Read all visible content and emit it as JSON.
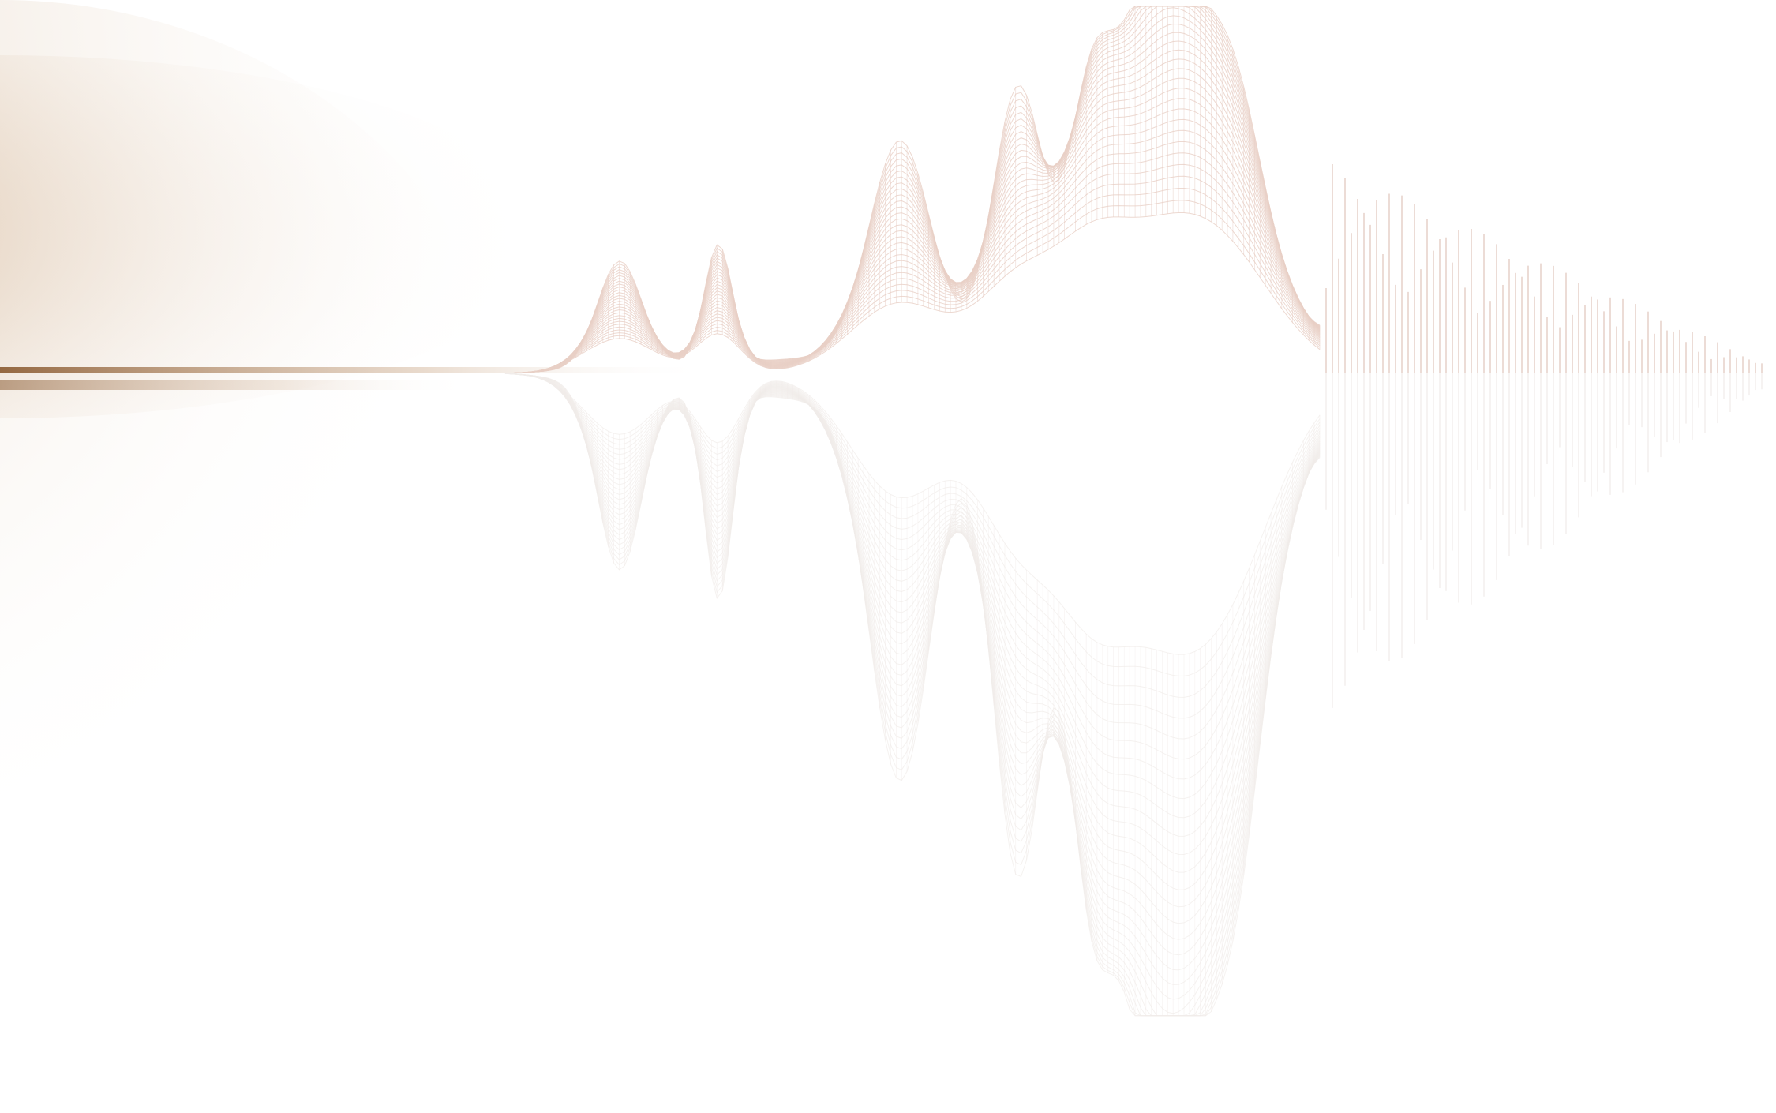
{
  "scene": {
    "description_free": true,
    "colors": {
      "background": "#ffffff",
      "haze": "#b88a5a",
      "mesh": "#e8cfc6",
      "reflection": "#f1ecea",
      "bars": "#ecdcd6"
    }
  }
}
